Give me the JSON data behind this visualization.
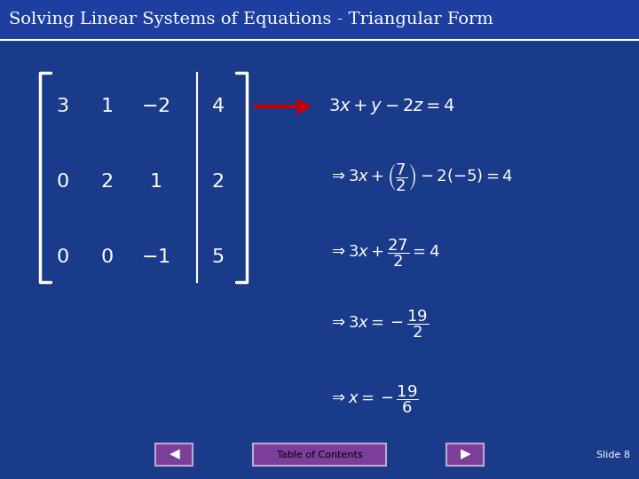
{
  "title": "Solving Linear Systems of Equations - Triangular Form",
  "bg_color": "#1a3a8a",
  "title_text_color": "#ffffff",
  "content_text_color": "#ffffff",
  "slide_label": "Slide 8",
  "bottom_label": "Table of Contents",
  "matrix_rows": [
    [
      "3",
      "1",
      "-2",
      "4"
    ],
    [
      "0",
      "2",
      "1",
      "2"
    ],
    [
      "0",
      "0",
      "-1",
      "5"
    ]
  ],
  "arrow_color": "#cc0000",
  "separator_color": "#ffffff",
  "matrix_bracket_color": "#ffffff",
  "matrix_vline_color": "#ffffff",
  "footer_box_color": "#7b3f99",
  "footer_text_color": "#000000",
  "title_bar_color": "#1e3fa0"
}
